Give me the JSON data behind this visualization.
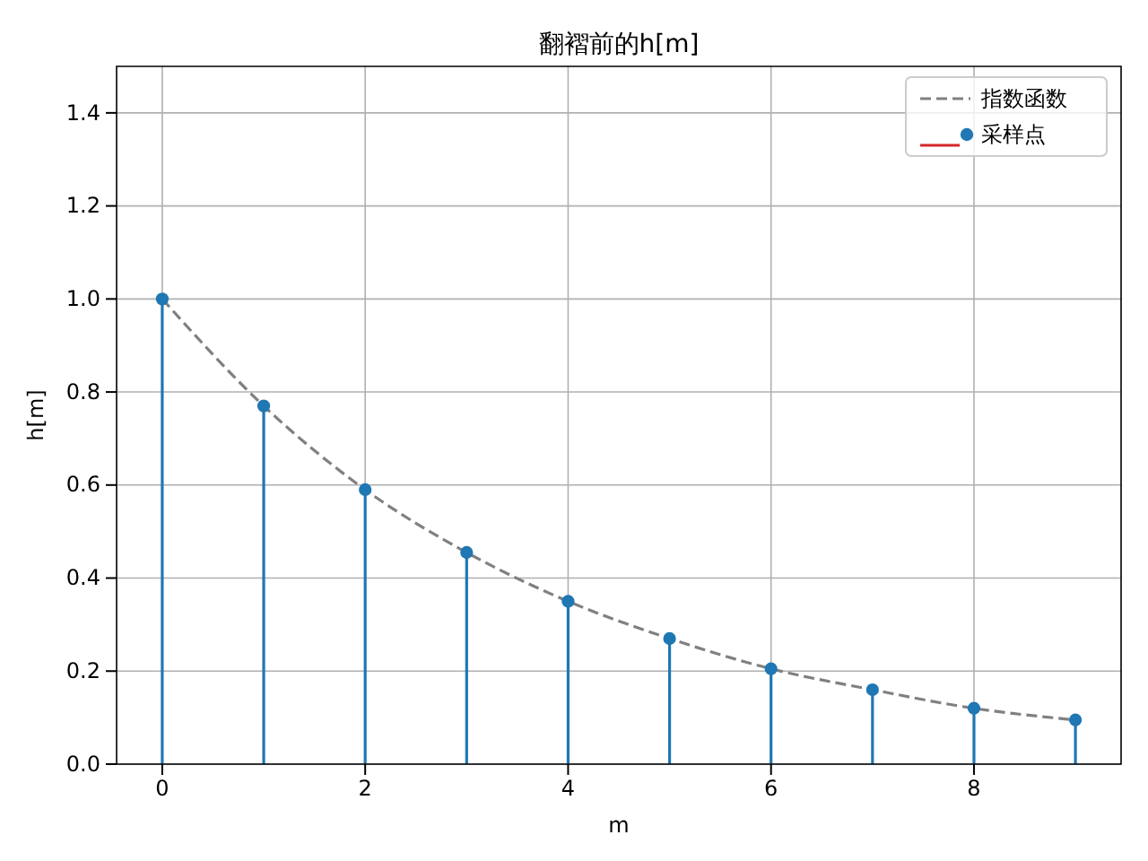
{
  "chart_data": {
    "type": "lollipop",
    "title": "翻褶前的h[m]",
    "xlabel": "m",
    "ylabel": "h[m]",
    "xlim": [
      -0.45,
      9.45
    ],
    "xticks": [
      0,
      2,
      4,
      6,
      8
    ],
    "ylim": [
      0,
      1.5
    ],
    "yticks": [
      {
        "value": 0,
        "label": "0.0"
      },
      {
        "value": 0.2,
        "label": "0.2"
      },
      {
        "value": 0.4,
        "label": "0.4"
      },
      {
        "value": 0.6,
        "label": "0.6"
      },
      {
        "value": 0.8,
        "label": "0.8"
      },
      {
        "value": 1.0,
        "label": "1.0"
      },
      {
        "value": 1.2,
        "label": "1.2"
      },
      {
        "value": 1.4,
        "label": "1.4"
      }
    ],
    "grid": true,
    "legend": "top right",
    "series": [
      {
        "name": "指数函数",
        "type": "line",
        "color": "#808080",
        "line_style": "dashed",
        "marker": "none",
        "x": [
          0,
          1,
          2,
          3,
          4,
          5,
          6,
          7,
          8,
          9
        ],
        "values": [
          1.0,
          0.77,
          0.59,
          0.455,
          0.35,
          0.27,
          0.205,
          0.16,
          0.12,
          0.095
        ]
      },
      {
        "name": "采样点",
        "color": "#1f77b4",
        "marker": "circle",
        "x": [
          0,
          1,
          2,
          3,
          4,
          5,
          6,
          7,
          8,
          9
        ],
        "values": [
          1.0,
          0.77,
          0.59,
          0.455,
          0.35,
          0.27,
          0.205,
          0.16,
          0.12,
          0.095
        ]
      }
    ]
  }
}
